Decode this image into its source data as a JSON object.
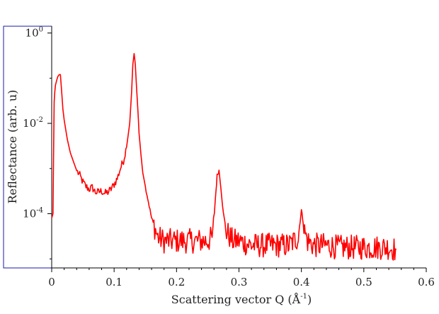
{
  "chart_data": {
    "type": "line",
    "title": "",
    "xlabel": "Scattering vector Q (Å",
    "xlabel_sup": "-1",
    "xlabel_suffix": ")",
    "ylabel": "Reflectance (arb. u)",
    "xlim": [
      0,
      0.6
    ],
    "ylim_log10": [
      -5.2,
      0.15
    ],
    "y_scale": "log",
    "grid": false,
    "legend": "none",
    "line_color": "#ff0000",
    "frame_color": "#1a1aa8",
    "x_ticks": [
      {
        "value": 0,
        "label": "0"
      },
      {
        "value": 0.1,
        "label": "0.1"
      },
      {
        "value": 0.2,
        "label": "0.2"
      },
      {
        "value": 0.3,
        "label": "0.3"
      },
      {
        "value": 0.4,
        "label": "0.4"
      },
      {
        "value": 0.5,
        "label": "0.5"
      },
      {
        "value": 0.6,
        "label": "0.6"
      }
    ],
    "y_major_ticks": [
      {
        "log10": 0,
        "base": "10",
        "exp": "0"
      },
      {
        "log10": -2,
        "base": "10",
        "exp": "-2"
      },
      {
        "log10": -4,
        "base": "10",
        "exp": "-4"
      }
    ],
    "y_minor_ticks_log10": [
      -1,
      -3,
      -5
    ],
    "series": [
      {
        "color": "#ff0000",
        "x": [
          0.0,
          0.002,
          0.004,
          0.005,
          0.006,
          0.008,
          0.01,
          0.012,
          0.014,
          0.016,
          0.018,
          0.02,
          0.025,
          0.03,
          0.035,
          0.04,
          0.045,
          0.05,
          0.055,
          0.06,
          0.065,
          0.07,
          0.075,
          0.08,
          0.085,
          0.09,
          0.095,
          0.1,
          0.105,
          0.11,
          0.115,
          0.12,
          0.125,
          0.128,
          0.13,
          0.132,
          0.134,
          0.136,
          0.138,
          0.14,
          0.143,
          0.146,
          0.15,
          0.155,
          0.16,
          0.165,
          0.17,
          0.18,
          0.19,
          0.2,
          0.21,
          0.22,
          0.23,
          0.24,
          0.25,
          0.258,
          0.262,
          0.265,
          0.268,
          0.271,
          0.275,
          0.28,
          0.29,
          0.3,
          0.32,
          0.34,
          0.36,
          0.38,
          0.395,
          0.398,
          0.4,
          0.402,
          0.405,
          0.41,
          0.42,
          0.44,
          0.46,
          0.48,
          0.5,
          0.52,
          0.54,
          0.552
        ],
        "y": [
          8e-05,
          0.0001,
          0.03,
          0.05,
          0.07,
          0.09,
          0.11,
          0.12,
          0.12,
          0.05,
          0.02,
          0.012,
          0.0045,
          0.0022,
          0.0014,
          0.0009,
          0.0007,
          0.0005,
          0.0004,
          0.00035,
          0.00038,
          0.0003,
          0.0003,
          0.00032,
          0.00028,
          0.0003,
          0.00035,
          0.00045,
          0.0006,
          0.001,
          0.0015,
          0.003,
          0.01,
          0.05,
          0.2,
          0.35,
          0.2,
          0.06,
          0.02,
          0.006,
          0.002,
          0.0008,
          0.0004,
          0.00018,
          8e-05,
          5e-05,
          3e-05,
          2.5e-05,
          2.5e-05,
          2.5e-05,
          2.5e-05,
          2.5e-05,
          2.5e-05,
          2.5e-05,
          2.5e-05,
          3e-05,
          0.0002,
          0.0007,
          0.0009,
          0.0004,
          0.0001,
          4e-05,
          2.5e-05,
          2.5e-05,
          2e-05,
          2e-05,
          2e-05,
          2e-05,
          3e-05,
          7e-05,
          0.00012,
          8e-05,
          4e-05,
          2.5e-05,
          2e-05,
          2e-05,
          1.8e-05,
          1.8e-05,
          1.8e-05,
          1.8e-05,
          1.8e-05,
          1.6e-05
        ]
      }
    ]
  }
}
